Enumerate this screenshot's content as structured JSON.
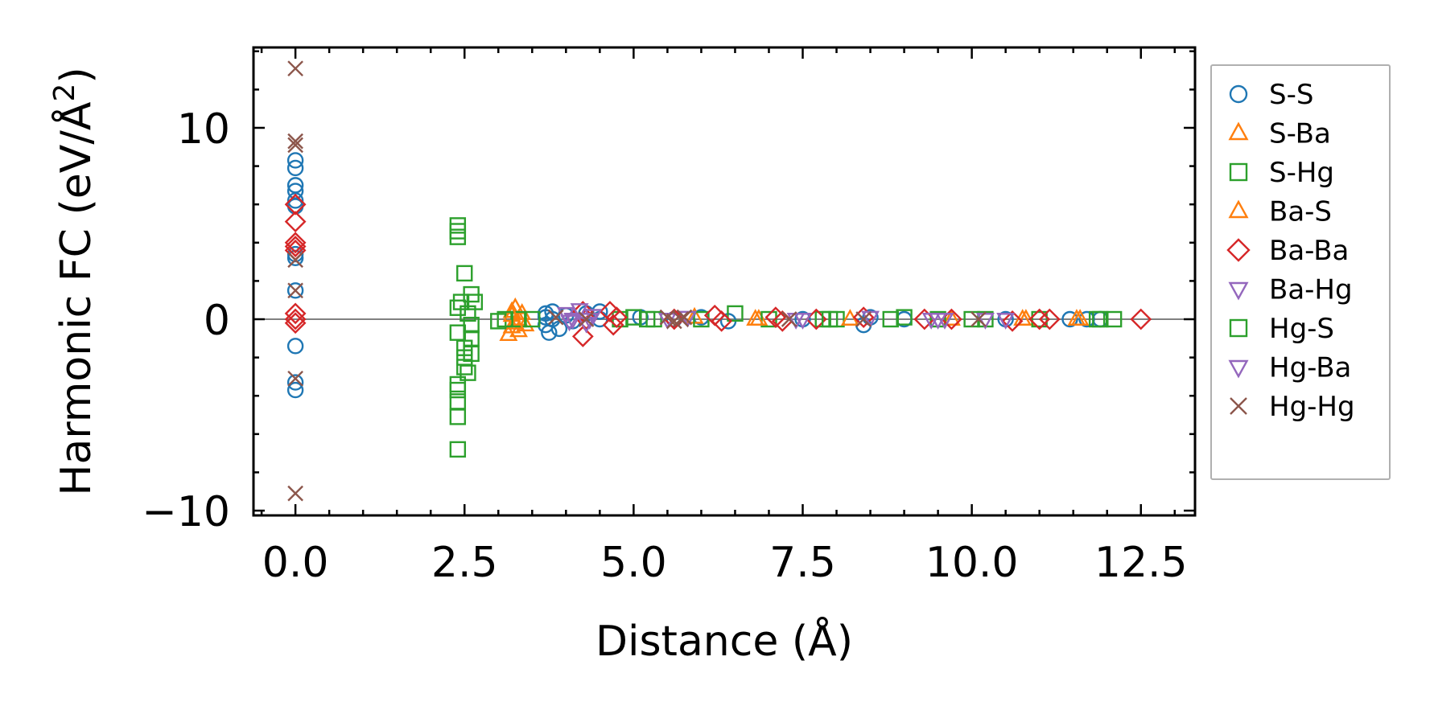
{
  "chart_data": {
    "type": "scatter",
    "title": "",
    "xlabel": "Distance (Å)",
    "ylabel_main": "Harmonic FC (eV/Å",
    "ylabel_sup": "2",
    "ylabel_close": ")",
    "xlim": [
      -0.62,
      13.3
    ],
    "ylim": [
      -10.25,
      14.2
    ],
    "xticks": [
      0.0,
      2.5,
      5.0,
      7.5,
      10.0,
      12.5
    ],
    "xtick_labels": [
      "0.0",
      "2.5",
      "5.0",
      "7.5",
      "10.0",
      "12.5"
    ],
    "yticks": [
      -10,
      0,
      10
    ],
    "ytick_labels": [
      "−10",
      "0",
      "10"
    ],
    "zero_line": true,
    "legend_position": "outside-right",
    "series": [
      {
        "name": "S-S",
        "marker": "circle",
        "color": "#1f77b4",
        "points": [
          [
            0,
            8.3
          ],
          [
            0,
            7.9
          ],
          [
            0,
            7.0
          ],
          [
            0,
            6.7
          ],
          [
            0,
            6.2
          ],
          [
            0,
            5.9
          ],
          [
            0,
            3.4
          ],
          [
            0,
            3.2
          ],
          [
            0,
            1.5
          ],
          [
            0,
            -1.4
          ],
          [
            0,
            -3.3
          ],
          [
            0,
            -3.7
          ],
          [
            3.7,
            0.3
          ],
          [
            3.7,
            0.1
          ],
          [
            3.7,
            -0.3
          ],
          [
            3.75,
            -0.7
          ],
          [
            3.8,
            0.4
          ],
          [
            3.8,
            0.0
          ],
          [
            3.9,
            -0.5
          ],
          [
            4.0,
            0.2
          ],
          [
            4.1,
            -0.1
          ],
          [
            4.3,
            0.3
          ],
          [
            4.5,
            0.4
          ],
          [
            4.5,
            0.0
          ],
          [
            5.1,
            0.1
          ],
          [
            5.6,
            0.0
          ],
          [
            6.0,
            0.1
          ],
          [
            6.4,
            -0.1
          ],
          [
            7.5,
            0.0
          ],
          [
            8.4,
            -0.3
          ],
          [
            8.5,
            0.1
          ],
          [
            9.0,
            0.0
          ],
          [
            10.5,
            0.0
          ],
          [
            11.45,
            0.0
          ],
          [
            11.7,
            0.0
          ],
          [
            11.9,
            0.0
          ]
        ]
      },
      {
        "name": "S-Ba",
        "marker": "triangle-up",
        "color": "#ff7f0e",
        "points": [
          [
            3.15,
            -0.8
          ],
          [
            3.2,
            0.4
          ],
          [
            3.2,
            -0.4
          ],
          [
            3.25,
            0.6
          ],
          [
            3.3,
            -0.6
          ],
          [
            3.3,
            0.0
          ],
          [
            3.35,
            0.3
          ],
          [
            3.4,
            -0.3
          ],
          [
            5.9,
            0.1
          ],
          [
            6.85,
            0.0
          ],
          [
            9.7,
            0.0
          ],
          [
            10.8,
            0.0
          ],
          [
            11.6,
            0.0
          ]
        ]
      },
      {
        "name": "S-Hg",
        "marker": "square",
        "color": "#2ca02c",
        "points": [
          [
            2.4,
            4.9
          ],
          [
            2.4,
            4.6
          ],
          [
            2.4,
            4.3
          ],
          [
            2.4,
            0.6
          ],
          [
            2.4,
            -0.7
          ],
          [
            2.4,
            -3.4
          ],
          [
            2.4,
            -3.7
          ],
          [
            2.4,
            -4.3
          ],
          [
            2.4,
            -5.1
          ],
          [
            2.4,
            -6.8
          ],
          [
            2.5,
            2.4
          ],
          [
            2.5,
            -1.5
          ],
          [
            2.5,
            -2.0
          ],
          [
            2.55,
            0.3
          ],
          [
            2.55,
            -2.8
          ],
          [
            2.6,
            1.3
          ],
          [
            2.6,
            -1.0
          ],
          [
            2.6,
            -1.8
          ],
          [
            2.65,
            0.9
          ],
          [
            3.0,
            -0.1
          ],
          [
            3.3,
            0.0
          ],
          [
            3.5,
            0.0
          ],
          [
            4.8,
            0.0
          ],
          [
            5.0,
            0.1
          ],
          [
            5.3,
            0.0
          ],
          [
            6.0,
            0.0
          ],
          [
            6.5,
            0.3
          ],
          [
            7.0,
            0.0
          ],
          [
            7.8,
            0.0
          ],
          [
            8.0,
            0.0
          ],
          [
            8.8,
            0.0
          ],
          [
            9.0,
            0.1
          ],
          [
            9.5,
            0.0
          ],
          [
            10.2,
            0.0
          ],
          [
            11.0,
            0.0
          ],
          [
            11.9,
            0.0
          ],
          [
            12.1,
            0.0
          ]
        ]
      },
      {
        "name": "Ba-S",
        "marker": "triangle-up",
        "color": "#ff7f0e",
        "points": [
          [
            3.2,
            0.2
          ],
          [
            3.25,
            -0.2
          ],
          [
            6.8,
            0.0
          ],
          [
            8.2,
            0.0
          ],
          [
            10.75,
            0.0
          ],
          [
            11.55,
            0.0
          ]
        ]
      },
      {
        "name": "Ba-Ba",
        "marker": "diamond",
        "color": "#d62728",
        "points": [
          [
            0,
            6.0
          ],
          [
            0,
            5.1
          ],
          [
            0,
            4.0
          ],
          [
            0,
            3.8
          ],
          [
            0,
            3.6
          ],
          [
            0,
            0.3
          ],
          [
            0,
            0.0
          ],
          [
            0,
            -0.2
          ],
          [
            4.25,
            0.4
          ],
          [
            4.25,
            -0.9
          ],
          [
            4.3,
            0.0
          ],
          [
            4.65,
            0.4
          ],
          [
            4.7,
            -0.3
          ],
          [
            4.75,
            0.1
          ],
          [
            5.6,
            0.0
          ],
          [
            6.2,
            0.2
          ],
          [
            6.3,
            -0.1
          ],
          [
            7.1,
            0.1
          ],
          [
            7.2,
            -0.1
          ],
          [
            7.7,
            0.0
          ],
          [
            8.4,
            0.1
          ],
          [
            9.3,
            0.0
          ],
          [
            9.7,
            0.0
          ],
          [
            10.6,
            -0.1
          ],
          [
            11.0,
            0.0
          ],
          [
            11.15,
            0.0
          ],
          [
            12.5,
            0.0
          ]
        ]
      },
      {
        "name": "Ba-Hg",
        "marker": "triangle-down",
        "color": "#9467bd",
        "points": [
          [
            4.0,
            0.3
          ],
          [
            4.1,
            0.0
          ],
          [
            4.2,
            0.5
          ],
          [
            4.3,
            -0.2
          ],
          [
            4.4,
            0.2
          ],
          [
            5.5,
            0.0
          ],
          [
            5.8,
            0.1
          ],
          [
            7.4,
            0.0
          ],
          [
            8.5,
            0.1
          ],
          [
            9.4,
            0.0
          ],
          [
            9.6,
            0.0
          ]
        ]
      },
      {
        "name": "Hg-S",
        "marker": "square",
        "color": "#2ca02c",
        "points": [
          [
            2.45,
            0.9
          ],
          [
            2.5,
            -2.5
          ],
          [
            2.6,
            -0.3
          ],
          [
            3.1,
            0.0
          ],
          [
            5.2,
            0.0
          ],
          [
            7.9,
            0.0
          ],
          [
            10.0,
            0.0
          ],
          [
            11.85,
            0.0
          ]
        ]
      },
      {
        "name": "Hg-Ba",
        "marker": "triangle-down",
        "color": "#9467bd",
        "points": [
          [
            4.05,
            -0.1
          ],
          [
            4.35,
            0.0
          ],
          [
            7.5,
            0.0
          ],
          [
            9.5,
            0.0
          ],
          [
            10.2,
            0.0
          ],
          [
            10.5,
            0.0
          ]
        ]
      },
      {
        "name": "Hg-Hg",
        "marker": "x",
        "color": "#8c564b",
        "points": [
          [
            0,
            13.1
          ],
          [
            0,
            9.3
          ],
          [
            0,
            9.1
          ],
          [
            0,
            3.1
          ],
          [
            0,
            1.5
          ],
          [
            0,
            -3.1
          ],
          [
            0,
            -9.1
          ],
          [
            3.85,
            0.1
          ],
          [
            4.3,
            0.0
          ],
          [
            5.5,
            0.1
          ],
          [
            5.6,
            -0.1
          ],
          [
            5.7,
            0.0
          ],
          [
            5.75,
            0.1
          ],
          [
            7.3,
            0.0
          ],
          [
            8.4,
            0.0
          ],
          [
            10.1,
            0.0
          ]
        ]
      }
    ]
  }
}
